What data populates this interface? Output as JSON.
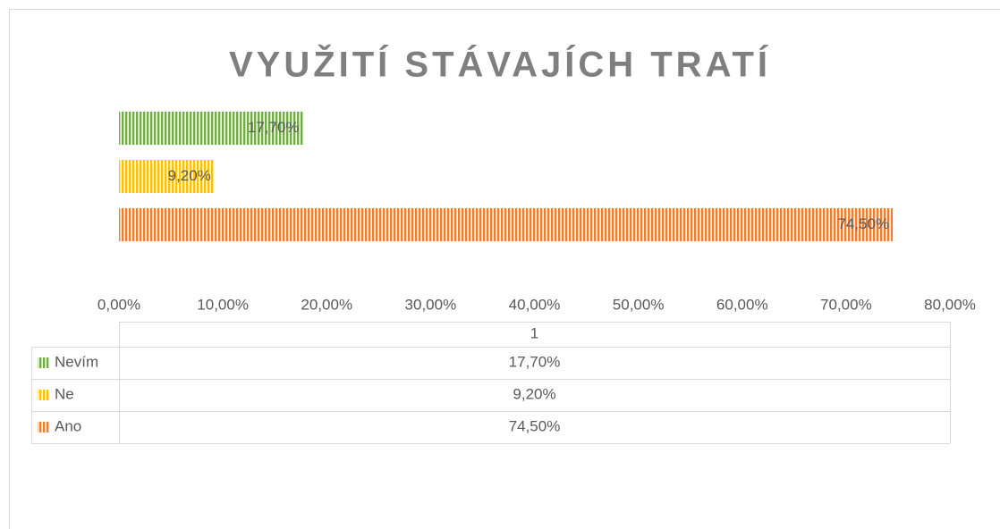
{
  "chart_data": {
    "type": "bar",
    "orientation": "horizontal",
    "title": "VYUŽITÍ STÁVAJÍCH TRATÍ",
    "categories": [
      "1"
    ],
    "series": [
      {
        "name": "Nevím",
        "color": "#70ad47",
        "values": [
          17.7
        ],
        "value_labels": [
          "17,70%"
        ]
      },
      {
        "name": "Ne",
        "color": "#ffc000",
        "values": [
          9.2
        ],
        "value_labels": [
          "9,20%"
        ]
      },
      {
        "name": "Ano",
        "color": "#ed7d31",
        "values": [
          74.5
        ],
        "value_labels": [
          "74,50%"
        ]
      }
    ],
    "xlim": [
      0,
      80
    ],
    "xticks": [
      {
        "value": 0,
        "label": "0,00%"
      },
      {
        "value": 10,
        "label": "10,00%"
      },
      {
        "value": 20,
        "label": "20,00%"
      },
      {
        "value": 30,
        "label": "30,00%"
      },
      {
        "value": 40,
        "label": "40,00%"
      },
      {
        "value": 50,
        "label": "50,00%"
      },
      {
        "value": 60,
        "label": "60,00%"
      },
      {
        "value": 70,
        "label": "70,00%"
      },
      {
        "value": 80,
        "label": "80,00%"
      }
    ],
    "data_table": true
  }
}
